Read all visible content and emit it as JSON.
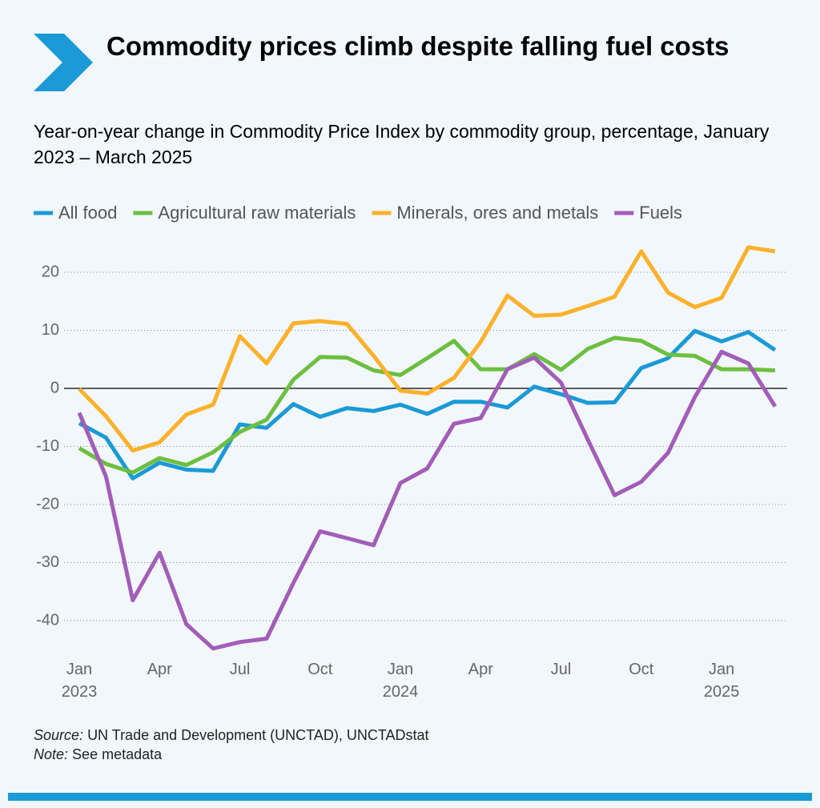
{
  "chart_data": {
    "type": "line",
    "title": "Commodity prices climb despite falling fuel costs",
    "subtitle": "Year-on-year change in Commodity Price Index by commodity group, percentage, January 2023 – March 2025",
    "categories": [
      "Jan 2023",
      null,
      null,
      "Apr",
      null,
      null,
      "Jul",
      null,
      null,
      "Oct",
      null,
      null,
      "Jan 2024",
      null,
      null,
      "Apr",
      null,
      null,
      "Jul",
      null,
      null,
      "Oct",
      null,
      null,
      "Jan 2025",
      null,
      null
    ],
    "series": [
      {
        "name": "All food",
        "color": "#1a9ad6",
        "values": [
          -6,
          -8.5,
          -15.5,
          -12.8,
          -14,
          -14.2,
          -6.2,
          -6.8,
          -2.7,
          -4.9,
          -3.4,
          -3.9,
          -2.8,
          -4.4,
          -2.3,
          -2.3,
          -3.3,
          0.3,
          -1,
          -2.5,
          -2.4,
          3.5,
          5.2,
          9.9,
          8.1,
          9.7,
          6.6
        ]
      },
      {
        "name": "Agricultural raw materials",
        "color": "#6cbf3f",
        "values": [
          -10.3,
          -13,
          -14.5,
          -12,
          -13.2,
          -11,
          -7.5,
          -5.4,
          1.5,
          5.4,
          5.3,
          3.1,
          2.3,
          5.2,
          8.2,
          3.3,
          3.3,
          5.9,
          3.2,
          6.8,
          8.7,
          8.2,
          5.8,
          5.6,
          3.3,
          3.3,
          3.1
        ]
      },
      {
        "name": "Minerals, ores and metals",
        "color": "#fbb12a",
        "values": [
          -0.1,
          -4.8,
          -10.7,
          -9.3,
          -4.5,
          -2.8,
          9,
          4.3,
          11.2,
          11.6,
          11.1,
          5.6,
          -0.4,
          -0.9,
          1.8,
          8,
          16,
          12.5,
          12.7,
          14.2,
          15.8,
          23.6,
          16.5,
          14,
          15.6,
          24.3,
          23.6
        ]
      },
      {
        "name": "Fuels",
        "color": "#a25db8",
        "values": [
          -4.2,
          -15.2,
          -36.5,
          -28.3,
          -40.6,
          -44.8,
          -43.7,
          -43.1,
          -33.5,
          -24.6,
          -25.8,
          -27,
          -16.3,
          -13.8,
          -6.1,
          -5.1,
          3.3,
          5.3,
          1,
          -8.8,
          -18.4,
          -16.1,
          -11.1,
          -1.5,
          6.3,
          4.3,
          -3.1
        ]
      }
    ],
    "ylim": [
      -46,
      26
    ],
    "yticks": [
      -40,
      -30,
      -20,
      -10,
      0,
      10,
      20
    ],
    "grid": true,
    "source": {
      "label": "Source:",
      "text": "UN Trade and Development (UNCTAD), UNCTADstat"
    },
    "note": {
      "label": "Note:",
      "text": "See metadata"
    }
  }
}
